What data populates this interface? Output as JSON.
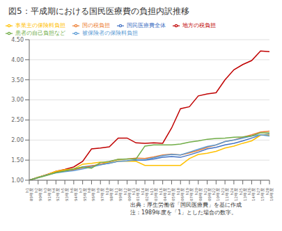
{
  "chart_data": {
    "type": "line",
    "title": "図5：平成期における国民医療費の負担内訳推移",
    "annotations": [
      "出典：厚生労働省「国民医療費」を基に作成",
      "注：1989年度を「1」とした場合の数字。"
    ],
    "categories": [
      "h1\n1989年度",
      "h2\n1990年度",
      "h3\n1991年度",
      "h4\n1992年度",
      "h5\n1993年度",
      "h6\n1994年度",
      "h7\n1995年度",
      "h8\n1996年度",
      "h9\n1997年度",
      "h10\n1998年度",
      "h11\n1999年度",
      "h12\n2000年度",
      "h13\n2001年度",
      "h14\n2002年度",
      "h15\n2003年度",
      "h16\n2004年度",
      "h17\n2005年度",
      "h18\n2006年度",
      "h19\n2007年度",
      "h20\n2008年度",
      "h21\n2009年度",
      "h22\n2010年度",
      "h23\n2011年度",
      "h24\n2012年度",
      "h25\n2013年度",
      "h26\n2014年度",
      "h27\n2015年度",
      "h28\n2016年度"
    ],
    "series": [
      {
        "name": "国民医療費全体",
        "color": "#4472c4",
        "values": [
          1.0,
          1.07,
          1.14,
          1.21,
          1.24,
          1.27,
          1.33,
          1.36,
          1.39,
          1.42,
          1.47,
          1.48,
          1.5,
          1.5,
          1.53,
          1.57,
          1.59,
          1.57,
          1.63,
          1.7,
          1.78,
          1.82,
          1.88,
          1.92,
          1.98,
          2.05,
          2.12,
          2.15
        ]
      },
      {
        "name": "国の税負担",
        "color": "#ed7d31",
        "values": [
          1.0,
          1.07,
          1.14,
          1.2,
          1.23,
          1.26,
          1.31,
          1.35,
          1.4,
          1.46,
          1.52,
          1.53,
          1.55,
          1.54,
          1.58,
          1.63,
          1.65,
          1.63,
          1.68,
          1.74,
          1.82,
          1.88,
          1.96,
          2.0,
          2.07,
          2.13,
          2.2,
          2.22
        ]
      },
      {
        "name": "地方の税負担",
        "color": "#c00000",
        "values": [
          1.0,
          1.07,
          1.14,
          1.22,
          1.27,
          1.33,
          1.47,
          1.78,
          1.8,
          1.83,
          2.05,
          2.05,
          1.93,
          1.92,
          1.93,
          1.92,
          2.3,
          2.78,
          2.83,
          3.1,
          3.15,
          3.18,
          3.5,
          3.75,
          3.88,
          3.98,
          4.22,
          4.2
        ]
      },
      {
        "name": "事業主の保険料負担",
        "color": "#ffc000",
        "values": [
          1.0,
          1.08,
          1.14,
          1.22,
          1.26,
          1.28,
          1.4,
          1.42,
          1.45,
          1.43,
          1.48,
          1.47,
          1.47,
          1.37,
          1.37,
          1.37,
          1.37,
          1.37,
          1.54,
          1.64,
          1.67,
          1.72,
          1.8,
          1.85,
          1.92,
          1.98,
          2.12,
          2.12
        ]
      },
      {
        "name": "被保険者の保険料負担",
        "color": "#5b9bd5",
        "values": [
          1.0,
          1.07,
          1.13,
          1.18,
          1.21,
          1.24,
          1.28,
          1.33,
          1.38,
          1.43,
          1.47,
          1.48,
          1.51,
          1.51,
          1.56,
          1.61,
          1.64,
          1.63,
          1.7,
          1.77,
          1.84,
          1.88,
          1.96,
          2.0,
          2.05,
          2.1,
          2.13,
          2.1
        ]
      },
      {
        "name": "患者の自己負担など",
        "color": "#70ad47",
        "values": [
          1.0,
          1.06,
          1.12,
          1.19,
          1.23,
          1.28,
          1.33,
          1.3,
          1.44,
          1.47,
          1.52,
          1.53,
          1.53,
          1.85,
          1.88,
          1.88,
          1.88,
          1.9,
          1.95,
          1.98,
          2.02,
          2.04,
          2.05,
          2.07,
          2.08,
          2.1,
          2.18,
          2.18
        ]
      }
    ],
    "ylim": [
      1.0,
      4.5
    ],
    "yticks": [
      {
        "value": 1.0,
        "label": "1.00"
      },
      {
        "value": 1.5,
        "label": "1.50"
      },
      {
        "value": 2.0,
        "label": "2.00"
      },
      {
        "value": 2.5,
        "label": "2.50"
      },
      {
        "value": 3.0,
        "label": "3.00"
      },
      {
        "value": 3.5,
        "label": "3.50"
      },
      {
        "value": 4.0,
        "label": "4.00"
      },
      {
        "value": 4.5,
        "label": "4.50"
      }
    ],
    "grid": true,
    "legend": "upper left"
  }
}
